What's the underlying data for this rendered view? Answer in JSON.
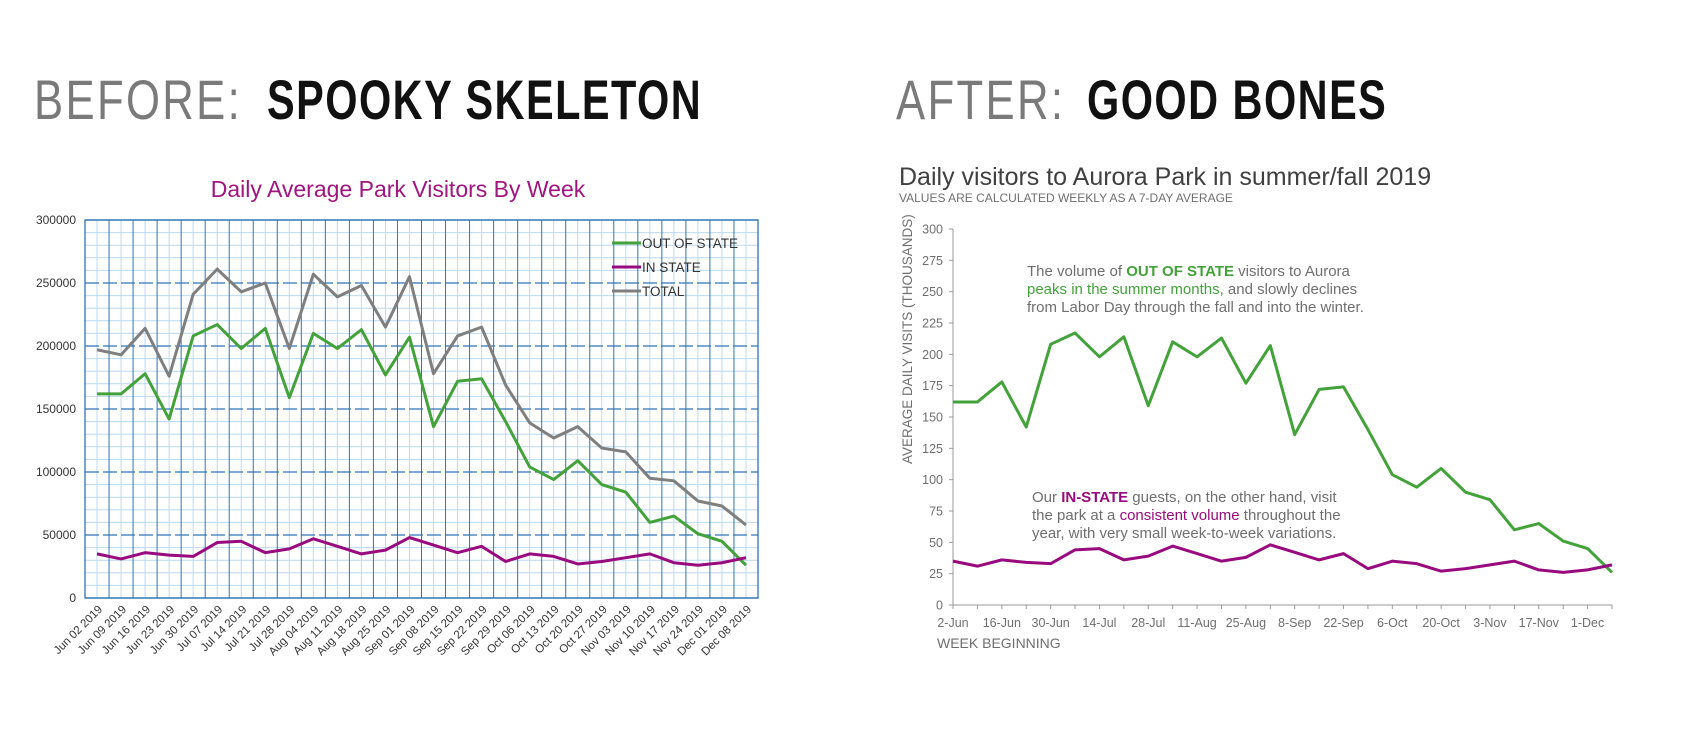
{
  "headings": {
    "before_prefix": "BEFORE:",
    "before_main": "SPOOKY SKELETON",
    "after_prefix": "AFTER:",
    "after_main": "GOOD BONES"
  },
  "colors": {
    "out_of_state": "#43a23a",
    "in_state": "#990a7e",
    "total": "#7f7f7f",
    "before_title": "#a0157f",
    "grid_major": "#2e75b6",
    "grid_minor": "#bcd9f0",
    "text_gray": "#6f6f6f"
  },
  "before_chart": {
    "title": "Daily Average Park Visitors By Week",
    "legend": [
      "OUT OF STATE",
      "IN STATE",
      "TOTAL"
    ]
  },
  "after_chart": {
    "title": "Daily visitors to Aurora Park in summer/fall 2019",
    "subtitle": "VALUES ARE CALCULATED WEEKLY AS A 7-DAY AVERAGE",
    "ylabel": "AVERAGE DAILY VISITS (THOUSANDS)",
    "xlabel": "WEEK BEGINNING",
    "annotation_out": {
      "line1_a": "The volume of ",
      "line1_b": "OUT OF STATE",
      "line1_c": " visitors to Aurora",
      "line2_a": "peaks in the summer months,",
      "line2_b": " and slowly declines",
      "line3": "from Labor Day through the fall and into the winter."
    },
    "annotation_in": {
      "line1_a": "Our ",
      "line1_b": "IN-STATE",
      "line1_c": " guests, on the other hand, visit",
      "line2_a": "the park at a ",
      "line2_b": "consistent volume",
      "line2_c": " throughout the",
      "line3": "year, with very small week-to-week variations."
    }
  },
  "chart_data": [
    {
      "type": "line",
      "title": "Daily Average Park Visitors By Week",
      "categories": [
        "Jun 02 2019",
        "Jun 09 2019",
        "Jun 16 2019",
        "Jun 23 2019",
        "Jun 30 2019",
        "Jul 07 2019",
        "Jul 14 2019",
        "Jul 21 2019",
        "Jul 28 2019",
        "Aug 04 2019",
        "Aug 11 2019",
        "Aug 18 2019",
        "Aug 25 2019",
        "Sep 01 2019",
        "Sep 08 2019",
        "Sep 15 2019",
        "Sep 22 2019",
        "Sep 29 2019",
        "Oct 06 2019",
        "Oct 13 2019",
        "Oct 20 2019",
        "Oct 27 2019",
        "Nov 03 2019",
        "Nov 10 2019",
        "Nov 17 2019",
        "Nov 24 2019",
        "Dec 01 2019",
        "Dec 08 2019"
      ],
      "ylim": [
        0,
        300000
      ],
      "yticks": [
        0,
        50000,
        100000,
        150000,
        200000,
        250000,
        300000
      ],
      "grid": true,
      "legend_position": "top-right",
      "series": [
        {
          "name": "OUT OF STATE",
          "values": [
            162000,
            162000,
            178000,
            142000,
            208000,
            217000,
            198000,
            214000,
            159000,
            210000,
            198000,
            213000,
            177000,
            207000,
            136000,
            172000,
            174000,
            140000,
            104000,
            94000,
            109000,
            90000,
            84000,
            60000,
            65000,
            51000,
            45000,
            26000
          ]
        },
        {
          "name": "IN STATE",
          "values": [
            35000,
            31000,
            36000,
            34000,
            33000,
            44000,
            45000,
            36000,
            39000,
            47000,
            41000,
            35000,
            38000,
            48000,
            42000,
            36000,
            41000,
            29000,
            35000,
            33000,
            27000,
            29000,
            32000,
            35000,
            28000,
            26000,
            28000,
            32000
          ]
        },
        {
          "name": "TOTAL",
          "values": [
            197000,
            193000,
            214000,
            176000,
            241000,
            261000,
            243000,
            250000,
            198000,
            257000,
            239000,
            248000,
            215000,
            255000,
            178000,
            208000,
            215000,
            169000,
            139000,
            127000,
            136000,
            119000,
            116000,
            95000,
            93000,
            77000,
            73000,
            58000
          ]
        }
      ]
    },
    {
      "type": "line",
      "title": "Daily visitors to Aurora Park in summer/fall 2019",
      "subtitle": "VALUES ARE CALCULATED WEEKLY AS A 7-DAY AVERAGE",
      "ylabel": "AVERAGE DAILY VISITS (THOUSANDS)",
      "xlabel": "WEEK BEGINNING",
      "x": [
        "2-Jun",
        "9-Jun",
        "16-Jun",
        "23-Jun",
        "30-Jun",
        "7-Jul",
        "14-Jul",
        "21-Jul",
        "28-Jul",
        "4-Aug",
        "11-Aug",
        "18-Aug",
        "25-Aug",
        "1-Sep",
        "8-Sep",
        "15-Sep",
        "22-Sep",
        "29-Sep",
        "6-Oct",
        "13-Oct",
        "20-Oct",
        "27-Oct",
        "3-Nov",
        "10-Nov",
        "17-Nov",
        "24-Nov",
        "1-Dec",
        "8-Dec"
      ],
      "x_tick_labels": [
        "2-Jun",
        "16-Jun",
        "30-Jun",
        "14-Jul",
        "28-Jul",
        "11-Aug",
        "25-Aug",
        "8-Sep",
        "22-Sep",
        "6-Oct",
        "20-Oct",
        "3-Nov",
        "17-Nov",
        "1-Dec"
      ],
      "ylim": [
        0,
        300
      ],
      "yticks": [
        0,
        25,
        50,
        75,
        100,
        125,
        150,
        175,
        200,
        225,
        250,
        275,
        300
      ],
      "grid": false,
      "series": [
        {
          "name": "OUT OF STATE",
          "values": [
            162,
            162,
            178,
            142,
            208,
            217,
            198,
            214,
            159,
            210,
            198,
            213,
            177,
            207,
            136,
            172,
            174,
            140,
            104,
            94,
            109,
            90,
            84,
            60,
            65,
            51,
            45,
            26
          ]
        },
        {
          "name": "IN-STATE",
          "values": [
            35,
            31,
            36,
            34,
            33,
            44,
            45,
            36,
            39,
            47,
            41,
            35,
            38,
            48,
            42,
            36,
            41,
            29,
            35,
            33,
            27,
            29,
            32,
            35,
            28,
            26,
            28,
            32
          ]
        }
      ]
    }
  ]
}
